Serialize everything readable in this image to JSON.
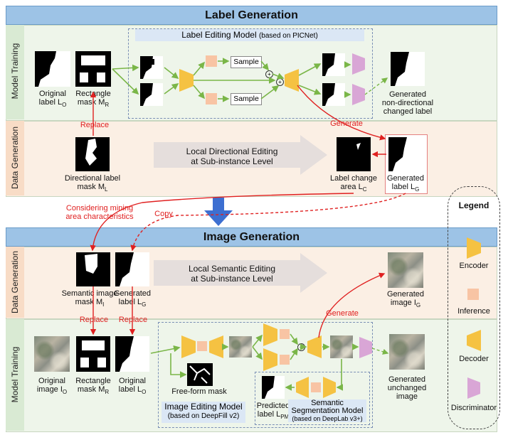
{
  "top": {
    "title": "Label Generation",
    "model_training": "Model Training",
    "data_generation": "Data Generation",
    "editing_model_title": "Label Editing Model",
    "editing_model_note": "(based on PICNet)",
    "sample_1": "Sample",
    "sample_2": "Sample",
    "original_label": "Original",
    "original_label_2": "label L",
    "original_label_sub": "O",
    "rect_mask": "Rectangle",
    "rect_mask_2": "mask M",
    "rect_mask_sub": "R",
    "generated_nondir_1": "Generated",
    "generated_nondir_2": "non-directional",
    "generated_nondir_3": "changed label",
    "replace": "Replace",
    "generate": "Generate",
    "directional_1": "Directional label",
    "directional_2": "mask M",
    "directional_sub": "L",
    "local_dir_1": "Local Directional Editing",
    "local_dir_2": "at Sub-instance Level",
    "label_change_1": "Label change",
    "label_change_2": "area L",
    "label_change_sub": "C",
    "gen_label_1": "Generated",
    "gen_label_2": "label L",
    "gen_label_sub": "G"
  },
  "between": {
    "considering_1": "Considering mining",
    "considering_2": "area characteristics",
    "copy": "Copy"
  },
  "bottom": {
    "title": "Image Generation",
    "data_generation": "Data Generation",
    "model_training": "Model Training",
    "semantic_mask_1": "Semantic image",
    "semantic_mask_2": "mask M",
    "semantic_mask_sub": "I",
    "gen_label_1": "Generated",
    "gen_label_2": "label L",
    "gen_label_sub": "G",
    "local_sem_1": "Local Semantic Editing",
    "local_sem_2": "at Sub-instance Level",
    "gen_image_1": "Generated",
    "gen_image_2": "image I",
    "gen_image_sub": "G",
    "replace_1": "Replace",
    "replace_2": "Replace",
    "generate": "Generate",
    "orig_image_1": "Original",
    "orig_image_2": "image I",
    "orig_image_sub": "O",
    "rect_mask_1": "Rectangle",
    "rect_mask_2": "mask M",
    "rect_mask_sub": "R",
    "orig_label_1": "Original",
    "orig_label_2": "label L",
    "orig_label_sub": "O",
    "free_form": "Free-form mask",
    "image_editing_1": "Image Editing Model",
    "image_editing_2": "(based on DeepFill v2)",
    "predicted_1": "Predicted",
    "predicted_2": "label L",
    "predicted_sub": "PM",
    "seg_1": "Semantic",
    "seg_2": "Segmentation Model",
    "seg_3": "(based on DeepLab v3+)",
    "gen_unchanged_1": "Generated",
    "gen_unchanged_2": "unchanged",
    "gen_unchanged_3": "image"
  },
  "legend": {
    "title": "Legend",
    "encoder": "Encoder",
    "inference": "Inference",
    "decoder": "Decoder",
    "discriminator": "Discriminator"
  },
  "colors": {
    "encoder": "#f5c242",
    "inference": "#f8c4a4",
    "discriminator": "#d9a6d6",
    "arrow_green": "#7ab648",
    "arrow_red": "#e02020",
    "arrow_blue": "#3d6fd1"
  }
}
